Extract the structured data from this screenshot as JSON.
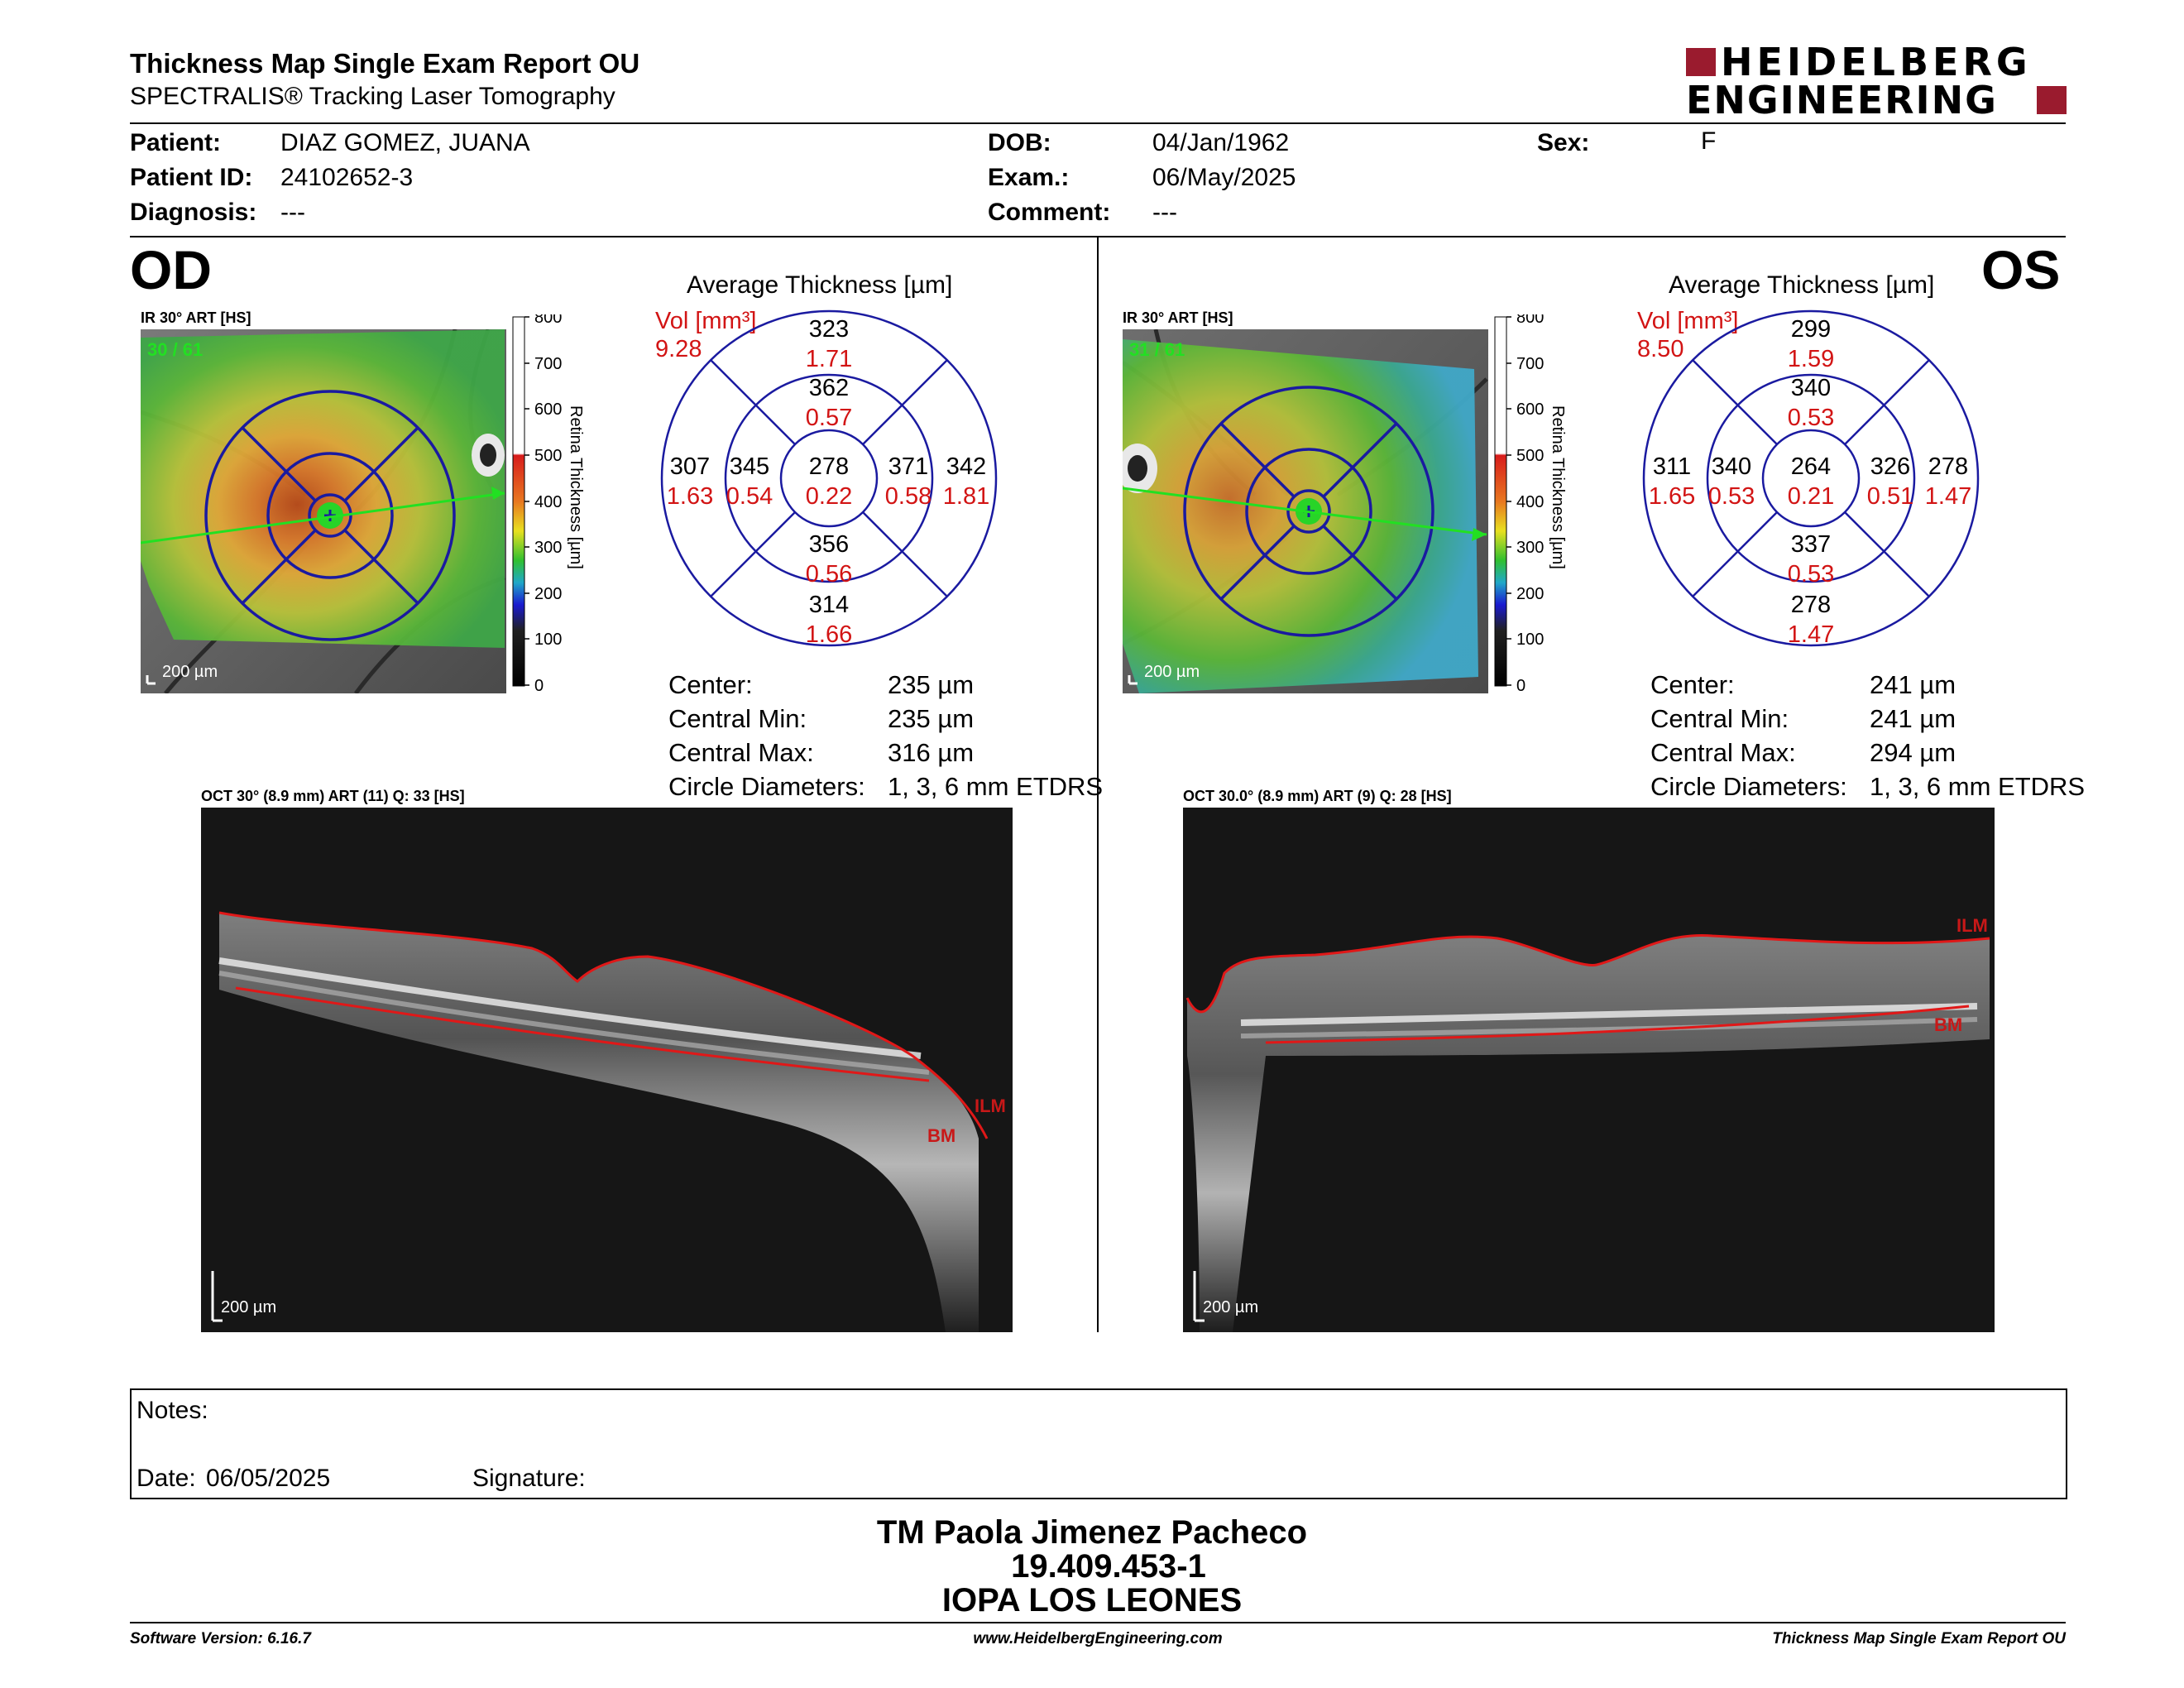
{
  "report": {
    "title": "Thickness Map Single Exam Report OU",
    "subtitle": "SPECTRALIS® Tracking Laser Tomography",
    "logo": {
      "line1": "HEIDELBERG",
      "line2": "ENGINEERING",
      "accent": "#9a1b2e"
    }
  },
  "patient": {
    "name_label": "Patient:",
    "name": "DIAZ GOMEZ, JUANA",
    "id_label": "Patient ID:",
    "id": "24102652-3",
    "diagnosis_label": "Diagnosis:",
    "diagnosis": "---",
    "dob_label": "DOB:",
    "dob": "04/Jan/1962",
    "exam_label": "Exam.:",
    "exam": "06/May/2025",
    "comment_label": "Comment:",
    "comment": "---",
    "sex_label": "Sex:",
    "sex": "F"
  },
  "od": {
    "eye": "OD",
    "ir_label": "IR 30° ART [HS]",
    "ir_counter": "30 / 61",
    "scale_bar": "200 µm",
    "colorbar": {
      "ticks": [
        "800",
        "700",
        "600",
        "500",
        "400",
        "300",
        "200",
        "100",
        "0"
      ],
      "label": "Retina Thickness [µm]"
    },
    "avg_title": "Average Thickness [µm]",
    "vol_label": "Vol [mm³]",
    "vol_total": "9.28",
    "etdrs": {
      "center": {
        "t": "278",
        "v": "0.22"
      },
      "inner_sup": {
        "t": "362",
        "v": "0.57"
      },
      "inner_inf": {
        "t": "356",
        "v": "0.56"
      },
      "inner_left": {
        "t": "345",
        "v": "0.54"
      },
      "inner_right": {
        "t": "371",
        "v": "0.58"
      },
      "outer_sup": {
        "t": "323",
        "v": "1.71"
      },
      "outer_inf": {
        "t": "314",
        "v": "1.66"
      },
      "outer_left": {
        "t": "307",
        "v": "1.63"
      },
      "outer_right": {
        "t": "342",
        "v": "1.81"
      }
    },
    "stats": {
      "center_label": "Center:",
      "center": "235 µm",
      "cmin_label": "Central Min:",
      "cmin": "235 µm",
      "cmax_label": "Central Max:",
      "cmax": "316 µm",
      "circ_label": "Circle Diameters:",
      "circ": "1, 3, 6 mm ETDRS"
    },
    "oct_label": "OCT 30° (8.9 mm) ART (11) Q: 33 [HS]",
    "ilm": "ILM",
    "bm": "BM",
    "oct_scale": "200 µm"
  },
  "os": {
    "eye": "OS",
    "ir_label": "IR 30° ART [HS]",
    "ir_counter": "31 / 61",
    "scale_bar": "200 µm",
    "colorbar": {
      "ticks": [
        "800",
        "700",
        "600",
        "500",
        "400",
        "300",
        "200",
        "100",
        "0"
      ],
      "label": "Retina Thickness [µm]"
    },
    "avg_title": "Average Thickness [µm]",
    "vol_label": "Vol [mm³]",
    "vol_total": "8.50",
    "etdrs": {
      "center": {
        "t": "264",
        "v": "0.21"
      },
      "inner_sup": {
        "t": "340",
        "v": "0.53"
      },
      "inner_inf": {
        "t": "337",
        "v": "0.53"
      },
      "inner_left": {
        "t": "340",
        "v": "0.53"
      },
      "inner_right": {
        "t": "326",
        "v": "0.51"
      },
      "outer_sup": {
        "t": "299",
        "v": "1.59"
      },
      "outer_inf": {
        "t": "278",
        "v": "1.47"
      },
      "outer_left": {
        "t": "311",
        "v": "1.65"
      },
      "outer_right": {
        "t": "278",
        "v": "1.47"
      }
    },
    "stats": {
      "center_label": "Center:",
      "center": "241 µm",
      "cmin_label": "Central Min:",
      "cmin": "241 µm",
      "cmax_label": "Central Max:",
      "cmax": "294 µm",
      "circ_label": "Circle Diameters:",
      "circ": "1, 3, 6 mm ETDRS"
    },
    "oct_label": "OCT 30.0° (8.9 mm) ART (9) Q: 28 [HS]",
    "ilm": "ILM",
    "bm": "BM",
    "oct_scale": "200 µm"
  },
  "notes": {
    "notes_label": "Notes:",
    "date_label": "Date:",
    "date": "06/05/2025",
    "signature_label": "Signature:"
  },
  "signature": {
    "name": "TM Paola Jimenez Pacheco",
    "id": "19.409.453-1",
    "org": "IOPA LOS LEONES"
  },
  "footer": {
    "software": "Software Version: 6.16.7",
    "website": "www.HeidelbergEngineering.com",
    "report": "Thickness Map Single Exam Report OU"
  },
  "colors": {
    "etdrs_grid": "#1a1aa0",
    "volume_red": "#d21414",
    "trace_red": "#e01818",
    "scan_green": "#22e022"
  }
}
